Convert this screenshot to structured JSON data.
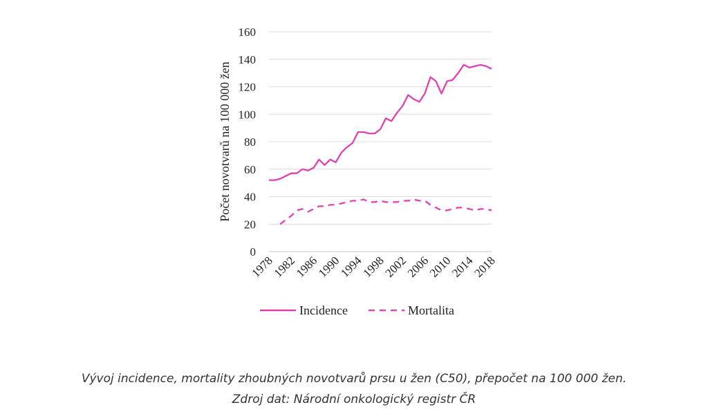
{
  "chart_data": {
    "type": "line",
    "title": "",
    "xlabel": "",
    "ylabel": "Počet novotvarů na 100 000 žen",
    "xlim": [
      1978,
      2018
    ],
    "ylim": [
      0,
      160
    ],
    "yticks": [
      0,
      20,
      40,
      60,
      80,
      100,
      120,
      140,
      160
    ],
    "xticks": [
      "1978",
      "1982",
      "1986",
      "1990",
      "1994",
      "1998",
      "2002",
      "2006",
      "2010",
      "2014",
      "2018"
    ],
    "grid": "horizontal",
    "legend_position": "bottom",
    "series": [
      {
        "name": "Incidence",
        "style": "solid",
        "color": "#e040b0",
        "x": [
          1978,
          1979,
          1980,
          1981,
          1982,
          1983,
          1984,
          1985,
          1986,
          1987,
          1988,
          1989,
          1990,
          1991,
          1992,
          1993,
          1994,
          1995,
          1996,
          1997,
          1998,
          1999,
          2000,
          2001,
          2002,
          2003,
          2004,
          2005,
          2006,
          2007,
          2008,
          2009,
          2010,
          2011,
          2012,
          2013,
          2014,
          2015,
          2016,
          2017,
          2018
        ],
        "y": [
          52,
          52,
          53,
          55,
          57,
          57,
          60,
          59,
          61,
          67,
          63,
          67,
          65,
          72,
          76,
          79,
          87,
          87,
          86,
          86,
          89,
          97,
          95,
          101,
          106,
          114,
          111,
          109,
          115,
          127,
          124,
          115,
          124,
          125,
          130,
          136,
          134,
          135,
          136,
          135,
          133
        ]
      },
      {
        "name": "Mortalita",
        "style": "dashed",
        "color": "#e040b0",
        "x": [
          1980,
          1981,
          1982,
          1983,
          1984,
          1985,
          1986,
          1987,
          1988,
          1989,
          1990,
          1991,
          1992,
          1993,
          1994,
          1995,
          1996,
          1997,
          1998,
          1999,
          2000,
          2001,
          2002,
          2003,
          2004,
          2005,
          2006,
          2007,
          2008,
          2009,
          2010,
          2011,
          2012,
          2013,
          2014,
          2015,
          2016,
          2017,
          2018
        ],
        "y": [
          20,
          23,
          26,
          30,
          31,
          29,
          31,
          33,
          33,
          34,
          34,
          35,
          36,
          37,
          37,
          38,
          36,
          36,
          37,
          36,
          36,
          36,
          37,
          37,
          38,
          37,
          37,
          34,
          32,
          30,
          30,
          31,
          32,
          32,
          31,
          30,
          31,
          31,
          30
        ]
      }
    ]
  },
  "caption": {
    "line1": "Vývoj incidence, mortality zhoubných novotvarů prsu u žen (C50), přepočet na 100 000 žen.",
    "line2": "Zdroj dat: Národní onkologický registr ČR"
  }
}
